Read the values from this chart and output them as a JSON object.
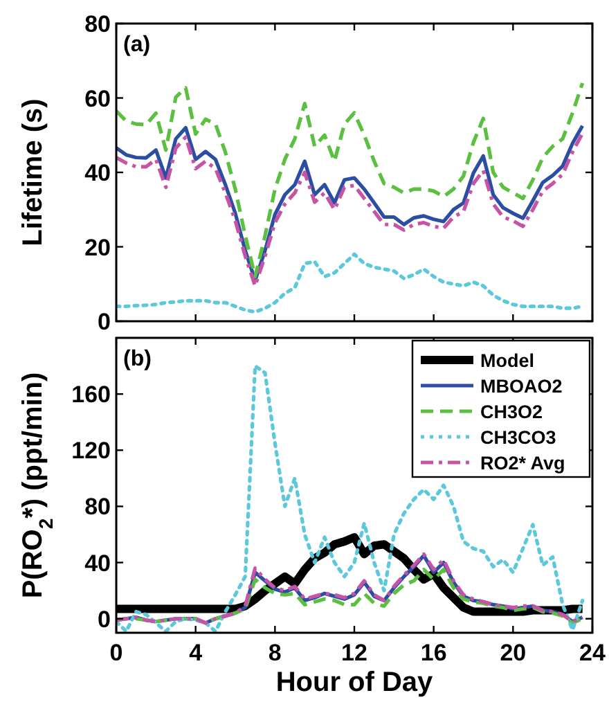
{
  "chart_data": [
    {
      "type": "line",
      "ylabel": "Lifetime (s)",
      "annotations": [
        "(a)"
      ],
      "xlim": [
        0,
        24
      ],
      "xticks": [
        0,
        4,
        8,
        12,
        16,
        20,
        24
      ],
      "ylim": [
        0,
        80
      ],
      "yticks": [
        0,
        20,
        40,
        60,
        80
      ],
      "tick_labels": "y",
      "legend": false,
      "grid": false,
      "x": [
        0,
        0.5,
        1,
        1.5,
        2,
        2.5,
        3,
        3.5,
        4,
        4.5,
        5,
        5.5,
        6,
        6.5,
        7,
        7.5,
        8,
        8.5,
        9,
        9.5,
        10,
        10.5,
        11,
        11.5,
        12,
        12.5,
        13,
        13.5,
        14,
        14.5,
        15,
        15.5,
        16,
        16.5,
        17,
        17.5,
        18,
        18.5,
        19,
        19.5,
        20,
        20.5,
        21,
        21.5,
        22,
        22.5,
        23,
        23.5
      ],
      "series": [
        {
          "color": "#2b4ea2",
          "line_style": "solid",
          "values": [
            46.6,
            44.7,
            44,
            43.9,
            46,
            38.5,
            49,
            52,
            43.5,
            45.6,
            43.5,
            36.7,
            29,
            19,
            11,
            19,
            28.7,
            34,
            36.7,
            43,
            34,
            36.7,
            31.8,
            38,
            38.5,
            35.5,
            31.8,
            28,
            28,
            26,
            27.8,
            28.3,
            27.4,
            26.8,
            30,
            31.8,
            39.8,
            44.4,
            34,
            30.5,
            29,
            27.7,
            32.4,
            37.3,
            39.2,
            41.7,
            47.8,
            52.5
          ]
        },
        {
          "color": "#5bbf3f",
          "line_style": "dashed",
          "values": [
            56.5,
            53.8,
            53,
            52.8,
            55.9,
            46,
            60.2,
            62.7,
            50.3,
            54.3,
            53,
            45.4,
            35.5,
            23,
            12,
            23,
            35.5,
            43.5,
            49,
            58.5,
            47,
            50,
            43,
            53,
            56,
            50,
            43,
            37,
            36,
            34.5,
            35.5,
            35.5,
            35,
            33.5,
            35.5,
            39,
            48,
            54.5,
            40,
            36,
            34.5,
            33,
            38,
            44,
            47,
            49,
            56,
            64
          ]
        },
        {
          "color": "#5bc8dc",
          "line_style": "dotted",
          "values": [
            4,
            4,
            4.2,
            4.3,
            4.5,
            5,
            5.2,
            5.5,
            5.5,
            5.5,
            5,
            5,
            4,
            3,
            2.5,
            3.5,
            5,
            7.5,
            9,
            15.5,
            16,
            12,
            13,
            15.5,
            18,
            15.5,
            14.5,
            14,
            13.5,
            11.5,
            12.5,
            14,
            12,
            10.5,
            10,
            9.5,
            10.5,
            9.5,
            7,
            5.5,
            4.5,
            4,
            4,
            4,
            4,
            3.5,
            3.5,
            4
          ]
        },
        {
          "color": "#c653a6",
          "line_style": "dashdot",
          "values": [
            44,
            42.5,
            41.5,
            41.5,
            43.5,
            36,
            46.5,
            49.5,
            41,
            43,
            41,
            34.5,
            27,
            17.5,
            9.5,
            17.5,
            26.5,
            31.5,
            34.5,
            40,
            32,
            34.5,
            30,
            36,
            36.5,
            33,
            29.5,
            26,
            26,
            24.5,
            26,
            26.5,
            25.5,
            25,
            28,
            29.5,
            37,
            40.5,
            31.5,
            28,
            27,
            25.5,
            30,
            35,
            37,
            39.5,
            45.5,
            50.5
          ]
        }
      ]
    },
    {
      "type": "line",
      "xlabel": "Hour of Day",
      "ylabel": "P(RO$_{2}$*) (ppt/min)",
      "annotations": [
        "(b)"
      ],
      "xlim": [
        0,
        24
      ],
      "xticks": [
        0,
        4,
        8,
        12,
        16,
        20,
        24
      ],
      "ylim": [
        -10,
        200
      ],
      "yticks": [
        0,
        40,
        80,
        120,
        160
      ],
      "legend": "top right",
      "grid": false,
      "x": [
        0,
        0.5,
        1,
        1.5,
        2,
        2.5,
        3,
        3.5,
        4,
        4.5,
        5,
        5.5,
        6,
        6.5,
        7,
        7.5,
        8,
        8.5,
        9,
        9.5,
        10,
        10.5,
        11,
        11.5,
        12,
        12.5,
        13,
        13.5,
        14,
        14.5,
        15,
        15.5,
        16,
        16.5,
        17,
        17.5,
        18,
        18.5,
        19,
        19.5,
        20,
        20.5,
        21,
        21.5,
        22,
        22.5,
        23,
        23.5
      ],
      "series": [
        {
          "name": "Model",
          "color": "#000000",
          "line_style": "solid",
          "values": [
            7,
            7,
            7,
            7,
            7,
            7,
            7,
            7,
            7,
            7,
            7,
            7,
            7,
            9,
            14,
            20,
            25,
            30,
            25,
            35,
            43,
            47,
            53,
            55,
            58,
            46,
            52,
            53,
            48,
            43,
            35,
            28,
            32,
            22,
            15,
            8,
            5,
            5,
            5,
            5,
            5,
            5,
            6,
            6,
            6,
            6,
            7,
            7
          ]
        },
        {
          "name": "MBOAO2",
          "color": "#2b4ea2",
          "line_style": "solid",
          "values": [
            -1,
            0,
            1,
            -1,
            -2,
            -1,
            0,
            0,
            0,
            -3,
            0,
            2,
            4,
            8,
            33,
            27,
            21,
            19,
            22,
            13,
            15,
            18,
            16,
            14,
            17,
            26,
            16,
            13,
            22,
            30,
            37,
            45,
            33,
            40,
            26,
            16,
            13,
            12,
            10,
            9,
            7,
            8,
            9,
            6,
            5,
            3,
            -2,
            1
          ]
        },
        {
          "name": "CH3O2",
          "color": "#5bbf3f",
          "line_style": "dashed",
          "values": [
            -1,
            0,
            0,
            -1,
            -2,
            -1,
            0,
            0,
            0,
            -3,
            0,
            2,
            4,
            7,
            28,
            22,
            18,
            17,
            18,
            10,
            12,
            14,
            13,
            10,
            10,
            18,
            11,
            9,
            18,
            24,
            27,
            35,
            28,
            35,
            22,
            14,
            12,
            11,
            9,
            8,
            6,
            7,
            8,
            5,
            4,
            2,
            -3,
            0
          ]
        },
        {
          "name": "CH3CO3",
          "color": "#5bc8dc",
          "line_style": "dotted",
          "values": [
            -2,
            -9,
            5,
            3,
            -3,
            -9,
            -2,
            0,
            -1,
            -3,
            -9,
            5,
            17,
            30,
            180,
            175,
            125,
            80,
            100,
            60,
            40,
            58,
            40,
            30,
            40,
            68,
            40,
            20,
            60,
            75,
            85,
            92,
            85,
            95,
            80,
            55,
            50,
            48,
            37,
            42,
            33,
            50,
            67,
            38,
            44,
            10,
            -8,
            13
          ]
        },
        {
          "name": "RO2* Avg",
          "color": "#c653a6",
          "line_style": "dashdot",
          "values": [
            -1,
            0,
            1,
            -1,
            -2,
            -1,
            0,
            0,
            0,
            -3,
            0,
            2,
            4,
            9,
            36,
            28,
            22,
            20,
            23,
            14,
            16,
            18,
            17,
            15,
            18,
            27,
            17,
            13,
            23,
            31,
            38,
            46,
            35,
            42,
            27,
            17,
            14,
            12,
            10,
            9,
            8,
            9,
            9,
            6,
            5,
            3,
            -2,
            1
          ]
        }
      ]
    }
  ]
}
